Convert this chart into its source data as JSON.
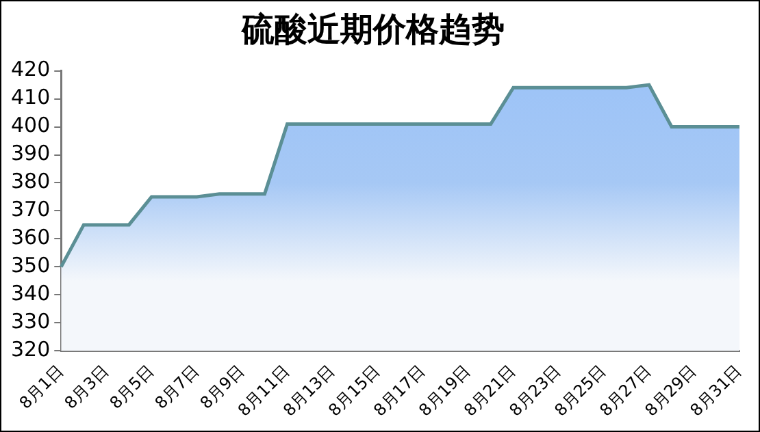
{
  "chart_data": {
    "type": "area",
    "title": "硫酸近期价格趋势",
    "categories": [
      "8月1日",
      null,
      "8月3日",
      null,
      "8月5日",
      null,
      "8月7日",
      null,
      "8月9日",
      null,
      "8月11日",
      null,
      "8月13日",
      null,
      "8月15日",
      null,
      "8月17日",
      null,
      "8月19日",
      null,
      "8月21日",
      null,
      "8月23日",
      null,
      "8月25日",
      null,
      "8月27日",
      null,
      "8月29日",
      null,
      "8月31日"
    ],
    "series": [
      {
        "color": "#5b8f95",
        "values": [
          350,
          365,
          365,
          365,
          375,
          375,
          375,
          376,
          376,
          376,
          401,
          401,
          401,
          401,
          401,
          401,
          401,
          401,
          401,
          401,
          414,
          414,
          414,
          414,
          414,
          414,
          415,
          400,
          400,
          400,
          400
        ]
      }
    ],
    "ylim": [
      320,
      420
    ],
    "yticks": [
      320,
      330,
      340,
      350,
      360,
      370,
      380,
      390,
      400,
      410,
      420
    ],
    "grid": false,
    "legend": false
  }
}
